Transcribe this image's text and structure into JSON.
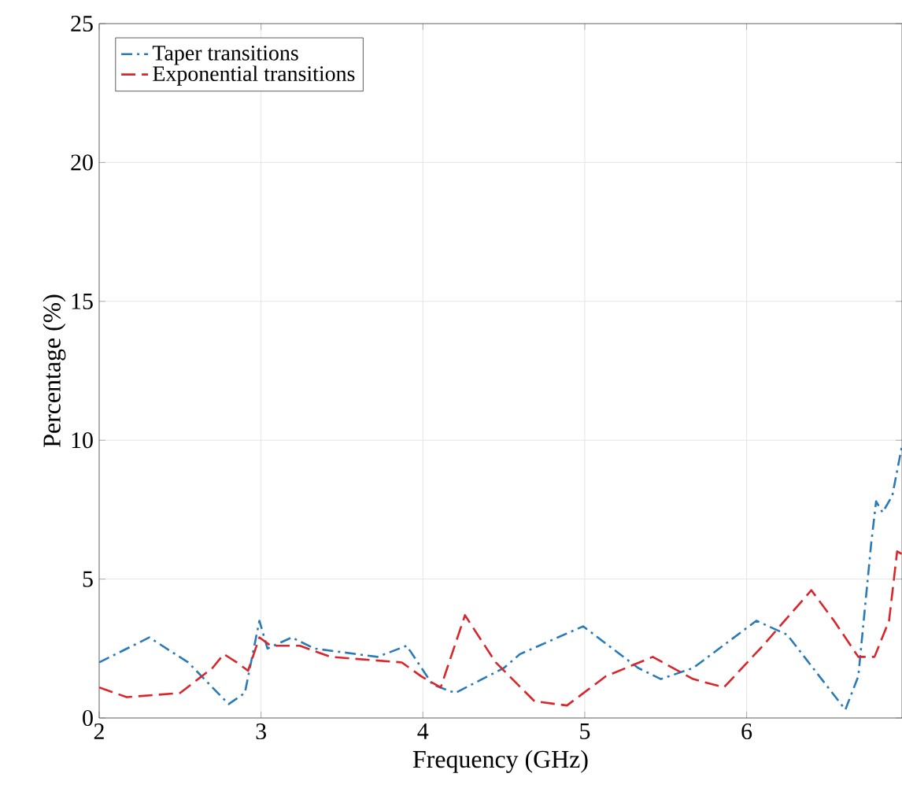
{
  "chart_data": {
    "type": "line",
    "xlabel": "Frequency (GHz)",
    "ylabel": "Percentage (%)",
    "xlim": [
      2,
      6.96
    ],
    "ylim": [
      0,
      25
    ],
    "xticks": [
      2,
      3,
      4,
      5,
      6
    ],
    "yticks": [
      0,
      5,
      10,
      15,
      20,
      25
    ],
    "grid": true,
    "legend": "top left",
    "marker": "none",
    "series": [
      {
        "name": "Taper transitions",
        "color": "#2a7ab8",
        "line_style": "dashdot",
        "x": [
          2.0,
          2.31,
          2.55,
          2.8,
          2.9,
          2.99,
          3.04,
          3.19,
          3.33,
          3.72,
          3.9,
          4.06,
          4.2,
          4.5,
          4.6,
          4.99,
          5.33,
          5.47,
          5.67,
          6.06,
          6.25,
          6.45,
          6.61,
          6.69,
          6.77,
          6.8,
          6.84,
          6.9,
          6.96
        ],
        "values": [
          2.0,
          2.9,
          2.0,
          0.5,
          0.9,
          3.5,
          2.5,
          2.9,
          2.5,
          2.2,
          2.6,
          1.2,
          0.9,
          1.8,
          2.3,
          3.3,
          1.8,
          1.4,
          1.8,
          3.5,
          3.0,
          1.5,
          0.3,
          1.5,
          6.3,
          7.8,
          7.4,
          8.0,
          9.8
        ]
      },
      {
        "name": "Exponential transitions",
        "color": "#d9262b",
        "line_style": "dashed",
        "x": [
          2.0,
          2.17,
          2.5,
          2.7,
          2.77,
          2.85,
          2.92,
          2.99,
          3.06,
          3.24,
          3.43,
          3.87,
          3.99,
          4.11,
          4.26,
          4.45,
          4.69,
          4.89,
          5.13,
          5.42,
          5.67,
          5.86,
          6.1,
          6.4,
          6.54,
          6.69,
          6.79,
          6.88,
          6.93,
          6.96
        ],
        "values": [
          1.1,
          0.75,
          0.9,
          1.8,
          2.3,
          2.0,
          1.7,
          2.9,
          2.6,
          2.6,
          2.2,
          2.0,
          1.5,
          1.1,
          3.7,
          2.0,
          0.6,
          0.45,
          1.5,
          2.2,
          1.4,
          1.1,
          2.6,
          4.6,
          3.5,
          2.2,
          2.2,
          3.5,
          6.0,
          5.9
        ]
      }
    ]
  }
}
